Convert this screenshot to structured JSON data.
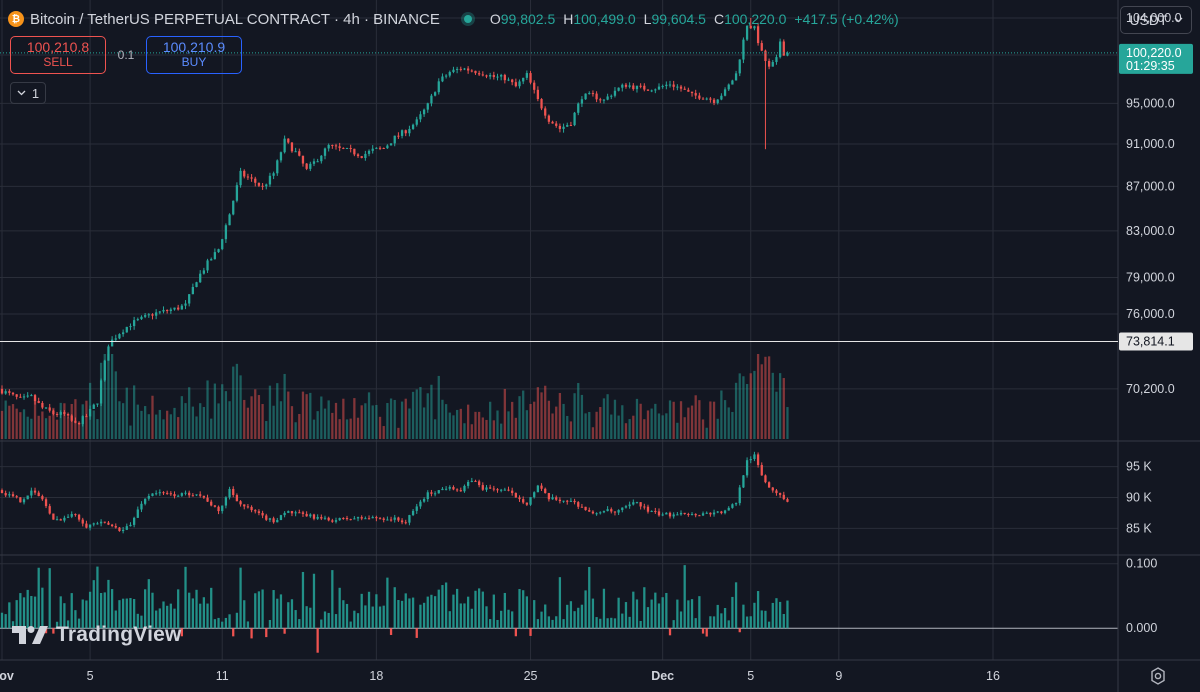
{
  "header": {
    "symbol_icon": "bitcoin-icon",
    "symbol_glyph": "₿",
    "title": "Bitcoin / TetherUS PERPETUAL CONTRACT · 4h · BINANCE",
    "ohlc": {
      "o_label": "O",
      "o_value": "99,802.5",
      "h_label": "H",
      "h_value": "100,499.0",
      "l_label": "L",
      "l_value": "99,604.5",
      "c_label": "C",
      "c_value": "100,220.0",
      "change": "+417.5 (+0.42%)"
    }
  },
  "trade": {
    "sell_price": "100,210.8",
    "sell_label": "SELL",
    "quantity": "0.1",
    "buy_price": "100,210.9",
    "buy_label": "BUY"
  },
  "collapse": {
    "icon": "chevron-down-icon",
    "count": "1"
  },
  "currency_selector": {
    "label": "USDT",
    "icon": "chevron-down-icon"
  },
  "logo": {
    "text": "TradingView",
    "icon": "tradingview-logo-icon"
  },
  "settings_icon": "gear-icon",
  "colors": {
    "background": "#131722",
    "grid": "#2a2e39",
    "text": "#d1d4dc",
    "up": "#26a69a",
    "down": "#ef5350",
    "buy_accent": "#2962ff"
  },
  "chart_data": [
    {
      "type": "candlestick",
      "title": "Bitcoin / TetherUS PERPETUAL CONTRACT · 4h · BINANCE",
      "price_axis_ticks": [
        104000,
        100000,
        95000,
        91000,
        87000,
        83000,
        79000,
        76000,
        70200
      ],
      "price_axis_labels": [
        "104,000.0",
        "95,000.0",
        "91,000.0",
        "87,000.0",
        "83,000.0",
        "79,000.0",
        "76,000.0",
        "70,200.0"
      ],
      "scale": "log",
      "ylim": [
        66500,
        106000
      ],
      "current_price": {
        "value": 100220.0,
        "label": "100,220.0",
        "countdown": "01:29:35"
      },
      "horizontal_line": {
        "value": 73814.1,
        "label": "73,814.1"
      },
      "x_tick_labels": [
        "Nov",
        "5",
        "11",
        "18",
        "25",
        "Dec",
        "5",
        "9",
        "16"
      ],
      "x_tick_dates": [
        "2024-11-01",
        "2024-11-05",
        "2024-11-11",
        "2024-11-18",
        "2024-11-25",
        "2024-12-01",
        "2024-12-05",
        "2024-12-09",
        "2024-12-16"
      ],
      "last_bar_date": "2024-12-06 16:00",
      "price_path": [
        [
          "2024-11-01 00:00",
          70200
        ],
        [
          "2024-11-01 12:00",
          69800
        ],
        [
          "2024-11-02 00:00",
          69400
        ],
        [
          "2024-11-02 12:00",
          69600
        ],
        [
          "2024-11-03 00:00",
          68800
        ],
        [
          "2024-11-03 12:00",
          68400
        ],
        [
          "2024-11-04 00:00",
          68300
        ],
        [
          "2024-11-04 12:00",
          67600
        ],
        [
          "2024-11-05 00:00",
          68200
        ],
        [
          "2024-11-05 12:00",
          69300
        ],
        [
          "2024-11-06 00:00",
          73600
        ],
        [
          "2024-11-06 12:00",
          74500
        ],
        [
          "2024-11-07 00:00",
          75200
        ],
        [
          "2024-11-07 12:00",
          75600
        ],
        [
          "2024-11-08 00:00",
          76000
        ],
        [
          "2024-11-08 12:00",
          76200
        ],
        [
          "2024-11-09 00:00",
          76400
        ],
        [
          "2024-11-09 12:00",
          76700
        ],
        [
          "2024-11-10 00:00",
          78800
        ],
        [
          "2024-11-10 12:00",
          80200
        ],
        [
          "2024-11-11 00:00",
          81400
        ],
        [
          "2024-11-11 12:00",
          84500
        ],
        [
          "2024-11-12 00:00",
          88200
        ],
        [
          "2024-11-12 12:00",
          87600
        ],
        [
          "2024-11-13 00:00",
          86900
        ],
        [
          "2024-11-13 12:00",
          88200
        ],
        [
          "2024-11-14 00:00",
          91300
        ],
        [
          "2024-11-14 12:00",
          90200
        ],
        [
          "2024-11-15 00:00",
          88500
        ],
        [
          "2024-11-15 12:00",
          89600
        ],
        [
          "2024-11-16 00:00",
          90800
        ],
        [
          "2024-11-16 12:00",
          90500
        ],
        [
          "2024-11-17 00:00",
          90300
        ],
        [
          "2024-11-17 12:00",
          89900
        ],
        [
          "2024-11-18 00:00",
          90400
        ],
        [
          "2024-11-18 12:00",
          90600
        ],
        [
          "2024-11-19 00:00",
          91600
        ],
        [
          "2024-11-19 12:00",
          92300
        ],
        [
          "2024-11-20 00:00",
          93200
        ],
        [
          "2024-11-20 12:00",
          94800
        ],
        [
          "2024-11-21 00:00",
          97200
        ],
        [
          "2024-11-21 12:00",
          98200
        ],
        [
          "2024-11-22 00:00",
          98600
        ],
        [
          "2024-11-22 12:00",
          98400
        ],
        [
          "2024-11-23 00:00",
          98100
        ],
        [
          "2024-11-23 12:00",
          97700
        ],
        [
          "2024-11-24 00:00",
          97600
        ],
        [
          "2024-11-24 12:00",
          96700
        ],
        [
          "2024-11-25 00:00",
          97900
        ],
        [
          "2024-11-25 12:00",
          95300
        ],
        [
          "2024-11-26 00:00",
          93400
        ],
        [
          "2024-11-26 12:00",
          92500
        ],
        [
          "2024-11-27 00:00",
          93100
        ],
        [
          "2024-11-27 12:00",
          95700
        ],
        [
          "2024-11-28 00:00",
          95800
        ],
        [
          "2024-11-28 12:00",
          95300
        ],
        [
          "2024-11-29 00:00",
          96300
        ],
        [
          "2024-11-29 12:00",
          96900
        ],
        [
          "2024-11-30 00:00",
          96600
        ],
        [
          "2024-11-30 12:00",
          96500
        ],
        [
          "2024-12-01 00:00",
          96600
        ],
        [
          "2024-12-01 12:00",
          97000
        ],
        [
          "2024-12-02 00:00",
          96500
        ],
        [
          "2024-12-02 12:00",
          95800
        ],
        [
          "2024-12-03 00:00",
          95700
        ],
        [
          "2024-12-03 12:00",
          95300
        ],
        [
          "2024-12-04 00:00",
          96200
        ],
        [
          "2024-12-04 12:00",
          98000
        ],
        [
          "2024-12-05 00:00",
          103300
        ],
        [
          "2024-12-05 08:00",
          102800
        ],
        [
          "2024-12-05 16:00",
          100200
        ],
        [
          "2024-12-06 00:00",
          98600
        ],
        [
          "2024-12-06 08:00",
          99500
        ],
        [
          "2024-12-06 12:00",
          101500
        ],
        [
          "2024-12-06 16:00",
          100220
        ]
      ],
      "wick_extremes": [
        {
          "date": "2024-12-05 00:00",
          "high": 104000
        },
        {
          "date": "2024-12-05 16:00",
          "low": 90500
        }
      ]
    },
    {
      "type": "bar",
      "title": "",
      "scale": "relative",
      "description_label": ""
    },
    {
      "type": "line",
      "title": "",
      "axis_labels": [
        "95 K",
        "90 K",
        "85 K"
      ],
      "axis_values": [
        95000,
        90000,
        85000
      ],
      "ylim": [
        81500,
        98500
      ],
      "path": [
        [
          "2024-11-01 00:00",
          91200
        ],
        [
          "2024-11-02 00:00",
          89500
        ],
        [
          "2024-11-02 12:00",
          91000
        ],
        [
          "2024-11-03 00:00",
          89800
        ],
        [
          "2024-11-03 12:00",
          86200
        ],
        [
          "2024-11-04 12:00",
          87300
        ],
        [
          "2024-11-05 00:00",
          85400
        ],
        [
          "2024-11-05 12:00",
          85900
        ],
        [
          "2024-11-06 00:00",
          85600
        ],
        [
          "2024-11-06 12:00",
          84800
        ],
        [
          "2024-11-07 00:00",
          85500
        ],
        [
          "2024-11-07 12:00",
          89200
        ],
        [
          "2024-11-08 00:00",
          90800
        ],
        [
          "2024-11-09 00:00",
          90400
        ],
        [
          "2024-11-10 00:00",
          90700
        ],
        [
          "2024-11-10 12:00",
          89500
        ],
        [
          "2024-11-11 00:00",
          87600
        ],
        [
          "2024-11-11 12:00",
          91300
        ],
        [
          "2024-11-12 00:00",
          88900
        ],
        [
          "2024-11-13 00:00",
          86900
        ],
        [
          "2024-11-13 12:00",
          86100
        ],
        [
          "2024-11-14 00:00",
          87700
        ],
        [
          "2024-11-15 00:00",
          87100
        ],
        [
          "2024-11-16 00:00",
          86300
        ],
        [
          "2024-11-17 00:00",
          86600
        ],
        [
          "2024-11-18 00:00",
          86700
        ],
        [
          "2024-11-19 00:00",
          86500
        ],
        [
          "2024-11-19 12:00",
          86000
        ],
        [
          "2024-11-20 00:00",
          88600
        ],
        [
          "2024-11-20 12:00",
          90600
        ],
        [
          "2024-11-21 00:00",
          91100
        ],
        [
          "2024-11-21 12:00",
          91900
        ],
        [
          "2024-11-22 00:00",
          91000
        ],
        [
          "2024-11-22 12:00",
          92900
        ],
        [
          "2024-11-23 00:00",
          91500
        ],
        [
          "2024-11-24 00:00",
          91200
        ],
        [
          "2024-11-24 12:00",
          90200
        ],
        [
          "2024-11-25 00:00",
          89100
        ],
        [
          "2024-11-25 12:00",
          91800
        ],
        [
          "2024-11-26 00:00",
          89800
        ],
        [
          "2024-11-27 00:00",
          89400
        ],
        [
          "2024-11-27 12:00",
          88500
        ],
        [
          "2024-11-28 00:00",
          87200
        ],
        [
          "2024-11-28 12:00",
          88000
        ],
        [
          "2024-11-29 00:00",
          87500
        ],
        [
          "2024-11-30 00:00",
          89300
        ],
        [
          "2024-11-30 12:00",
          87800
        ],
        [
          "2024-12-01 00:00",
          87300
        ],
        [
          "2024-12-01 12:00",
          87200
        ],
        [
          "2024-12-02 00:00",
          87700
        ],
        [
          "2024-12-02 12:00",
          87200
        ],
        [
          "2024-12-03 00:00",
          87400
        ],
        [
          "2024-12-04 00:00",
          87700
        ],
        [
          "2024-12-04 12:00",
          89200
        ],
        [
          "2024-12-05 00:00",
          96200
        ],
        [
          "2024-12-05 08:00",
          96700
        ],
        [
          "2024-12-05 16:00",
          93600
        ],
        [
          "2024-12-06 00:00",
          91600
        ],
        [
          "2024-12-06 12:00",
          90600
        ],
        [
          "2024-12-06 16:00",
          89500
        ]
      ]
    },
    {
      "type": "bar",
      "title": "",
      "axis_labels": [
        "0.100",
        "0.000"
      ],
      "axis_values": [
        0.1,
        0.0
      ],
      "ylim": [
        -0.04,
        0.112
      ]
    }
  ]
}
